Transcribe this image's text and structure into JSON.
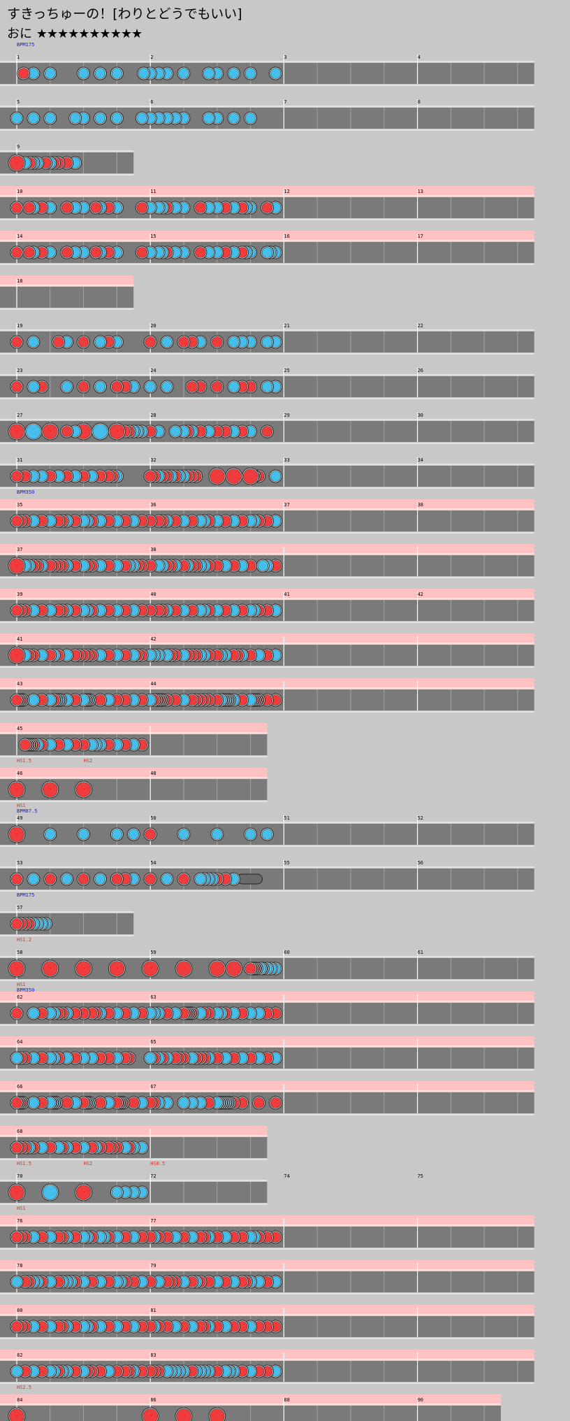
{
  "header": {
    "title": "すきっちゅーの！[わりとどうでもいい]",
    "course": "おに",
    "stars": "★★★★★★★★★★"
  },
  "colors": {
    "don": "#f03c3c",
    "ka": "#46beec",
    "lane": "#7a7a7a",
    "pink": "#ffc2c2",
    "background": "#c8c8c8"
  },
  "rows": [
    {
      "measures": [
        "1",
        "2",
        "3",
        "4"
      ],
      "events": [
        "BPM175"
      ],
      "len": 4,
      "p": 0,
      "notes": "d,0.2/k,0.5/k,1/k,2/k,2.5/k,3/k,3.8/k,4/k,4.25/k,4.5/k,5/k,5.75/k,6/k,6.5/k,7/k,7.75"
    },
    {
      "measures": [
        "5",
        "6",
        "7",
        "8"
      ],
      "events": [],
      "len": 4,
      "p": 0,
      "notes": "k,0/k,0.5/k,1/k,1.75/k,2/k,2.5/k,3/k,3.75/k,4/k,4.25/k,4.5/k,4.75/k,5/k,5.75/k,6/k,6.5/k,7"
    },
    {
      "measures": [
        "9"
      ],
      "events": [],
      "len": 1,
      "p": 0,
      "notes": "D,0/k,0.25/d,0.4/k,0.5/k,0.62/d,0.87/k,1/d,1.12/d,1.25/d,1.5/k,1.75"
    },
    {
      "measures": [
        "10",
        "11",
        "12",
        "13"
      ],
      "events": [],
      "len": 4,
      "p": 1,
      "notes": "d,0/d,0.37/k,0.5/d,0.75/k,1/d,1.5/k,1.75/k,2/d,2.37/k,2.5/d,2.75/k,3/d,3.75/k,4/k,4.25/k,4.37/d,4.5/k,4.75/k,5/d,5.5/k,5.75/k,6/d,6.25/k,6.5/d,6.75/k,6.87/k,7/d,7.5/k,7.75"
    },
    {
      "measures": [
        "14",
        "15",
        "16",
        "17"
      ],
      "events": [],
      "len": 4,
      "p": 1,
      "notes": "d,0/d,0.37/k,0.5/d,0.75/k,1/d,1.5/k,1.75/k,2/d,2.37/k,2.5/d,2.75/k,3/d,3.75/k,4/k,4.25/k,4.37/d,4.5/k,4.75/k,5/d,5.5/k,5.75/k,6/d,6.25/k,6.5/d,6.75/k,6.87/k,7/k,7.5/k,7.6/k,7.75"
    },
    {
      "measures": [
        "18"
      ],
      "events": [],
      "len": 1,
      "p": 1,
      "notes": ""
    },
    {
      "measures": [
        "19",
        "20",
        "21",
        "22"
      ],
      "events": [],
      "len": 4,
      "p": 0,
      "notes": "d,0/k,0.5/d,1.25/k,1.5/d,2/k,2.5/d,2.75/k,3/d,4/k,4.5/d,5/d,5.25/k,5.5/d,6/k,6.5/k,6.75/k,7/k,7.5/k,7.75"
    },
    {
      "measures": [
        "23",
        "24",
        "25",
        "26"
      ],
      "events": [],
      "len": 4,
      "p": 0,
      "notes": "d,0/k,0.5/d,0.75/k,1.5/d,2/k,2.5/d,3/d,3.25/k,3.5/k,4/k,4.5/d,5.25/d,5.5/d,6/k,6.5/d,6.75/d,7/k,7.5/k,7.75"
    },
    {
      "measures": [
        "27",
        "28",
        "29",
        "30"
      ],
      "events": [],
      "len": 4,
      "p": 0,
      "notes": "D,0/K,0.5/D,1/d,1.5/k,1.75/D,2/K,2.5/D,3/d,3.25/d,3.37/k,3.5/k,3.62/k,3.75/d,4/k,4.25/k,4.75/k,5/d,5.12/k,5.25/d,5.5/k,5.75/d,6/d,6.25/k,6.5/d,6.75/k,7/d,7.5"
    },
    {
      "measures": [
        "31",
        "32",
        "33",
        "34"
      ],
      "events": [],
      "len": 4,
      "p": 0,
      "notes": "d,0/d,0.25/k,0.5/k,0.75/d,1/k,1.25/d,1.5/k,1.75/d,2/k,2.25/d,2.5/d,2.75/d,2.87/k,3/d,4/d,4.12/k,4.25/d,4.37/d,4.5/k,4.62/d,4.75/k,4.87/k,5/d,5.12/d,5.25/d,5.37/D,6/D,6.5/D,7/d,7.12/d,7.25/k,7.75"
    },
    {
      "measures": [
        "35",
        "36",
        "37",
        "38"
      ],
      "events": [
        "BPM350"
      ],
      "len": 4,
      "p": 1,
      "notes": "d,0/d,0.12/d,0.25/k,0.5/d,0.75/k,1/d,1.25/d,1.37/k,1.5/d,1.75/k,2/k,2.12/d,2.25/k,2.5/d,2.75/k,3/d,3.25/k,3.5/d,3.75/d,4/d,4.25/d,4.37/k,4.5/d,4.75/k,5/d,5.25/k,5.5/k,5.62/d,5.75/k,6/d,6.25/k,6.5/d,6.75/k,7/k,7.12/d,7.25/d,7.5/k,7.75"
    },
    {
      "measures": [
        "37",
        "38"
      ],
      "events": [],
      "len": 4,
      "p": 1,
      "notes": "D,0/k,0.25/k,0.37/d,0.5/d,0.62/k,0.75/d,1/d,1.12/d,1.25/d,1.37/k,1.5/d,1.75/k,2/d,2.12/d,2.25/k,2.5/d,2.75/k,3/d,3.25/k,3.37/k,3.5/d,3.62/d,3.75/d,4/k,4.25/k,4.37/d,4.5/d,4.62/k,4.75/d,5/k,5.12/d,5.25/d,5.37/k,5.5/k,5.62/d,5.75/d,6/k,6.25/d,6.5/k,6.75/d,7/k,7.37/k,7.5/d,7.75"
    },
    {
      "measures": [
        "39",
        "40",
        "41",
        "42"
      ],
      "events": [],
      "len": 4,
      "p": 1,
      "notes": "d,0/d,0.12/d,0.25/k,0.5/d,0.75/k,1/d,1.25/d,1.37/k,1.5/d,1.75/k,2/k,2.12/d,2.25/k,2.5/d,2.75/k,3/d,3.25/k,3.5/d,3.75/d,4/d,4.25/d,4.37/k,4.5/d,4.75/k,5/d,5.25/k,5.5/k,5.62/d,5.75/k,6/d,6.25/k,6.5/d,6.75/k,7/k,7.12/d,7.25/d,7.5/k,7.75"
    },
    {
      "measures": [
        "41",
        "42"
      ],
      "events": [],
      "len": 4,
      "p": 1,
      "notes": "D,0/k,0.25/d,0.37/d,0.5/k,0.75/d,1/k,1.12/d,1.25/k,1.5/d,1.75/d,1.87/d,2/d,2.12/d,2.25/k,2.5/d,2.75/k,3/d,3.25/k,3.5/d,3.62/d,3.75/k,4/k,4.12/k,4.25/k,4.5/d,4.62/d,4.75/k,5/d,5.12/d,5.25/d,5.37/k,5.5/k,5.62/d,5.75/d,6/k,6.12/k,6.25/d,6.5/d,6.62/k,6.75/d,7/k,7.25/d,7.5/k,7.75"
    },
    {
      "measures": [
        "43",
        "44"
      ],
      "events": [],
      "len": 4,
      "p": 1,
      "notes": "d,0/d,0.06/d,0.12/d,0.18/k,0.5/d,0.75/k,1/d,1.12/k,1.18/k,1.25/k,1.31/k,1.5/d,1.75/k,2/k,2.06/k,2.12/k,2.18/d,2.5/k,2.75/d,3/d,3.25/k,3.5/d,3.75/k,4/d,4.12/d,4.18/d,4.25/d,4.31/d,4.37/d,4.5/d,4.75/k,5/d,5.25/d,5.37/d,5.5/d,5.62/d,5.75/d,6/k,6.12/k,6.18/k,6.25/k,6.31/k,6.37/k,6.5/d,6.75/k,7/d,7.06/d,7.12/d,7.18/d,7.25/d,7.5/d,7.75"
    },
    {
      "measures": [
        "45"
      ],
      "events": [],
      "len": 2,
      "p": 1,
      "notes": "d,0.25/d,0.31/d,0.37/d,0.43/d,0.5/k,0.62/d,0.75/k,1/d,1.25/k,1.5/d,1.75/d,2/k,2.25/k,2.37/k,2.5/d,2.75/k,3/d,3.25/k,3.5/d,3.75"
    },
    {
      "measures": [
        "46",
        "48"
      ],
      "events": [
        "HS1.5",
        "HS2"
      ],
      "len": 2,
      "p": 1,
      "notes": "D,0/D,1/D,2"
    },
    {
      "measures": [
        "49",
        "50",
        "51",
        "52"
      ],
      "events": [
        "HS1",
        "BPM87.5"
      ],
      "len": 4,
      "p": 0,
      "notes": "D,0/k,1/k,2/k,3/k,3.5/d,4/k,5/k,6/k,7/k,7.5"
    },
    {
      "measures": [
        "53",
        "54",
        "55",
        "56"
      ],
      "events": [],
      "len": 4,
      "p": 0,
      "notes": "d,0/k,0.5/d,1/k,1.5/d,2/k,2.5/d,3/d,3.25/k,3.5/d,4/k,4.5/d,5/k,5.5/k,5.62/k,5.75/k,5.87/d,6/d,6.25/k,6.5/y,6.6"
    },
    {
      "measures": [
        "57"
      ],
      "events": [
        "BPM175"
      ],
      "len": 1,
      "p": 0,
      "notes": "d,0/d,0.12/d,0.25/d,0.37/k,0.5/k,0.62/k,0.75/k,0.87"
    },
    {
      "measures": [
        "58",
        "59",
        "60",
        "61"
      ],
      "events": [
        "HS1.2"
      ],
      "len": 4,
      "p": 0,
      "notes": "D,0/D,1/D,2/D,3/D,4/D,5/D,6/D,6.5/d,7/d,7.06/d,7.12/d,7.18/k,7.31/k,7.37/k,7.5/k,7.62/k,7.75"
    },
    {
      "measures": [
        "62",
        "63"
      ],
      "events": [
        "HS1",
        "BPM350"
      ],
      "len": 4,
      "p": 1,
      "notes": "d,0/k,0.5/d,0.75/k,1/k,1.12/d,1.25/d,1.37/k,1.5/d,1.75/d,2/d,2.25/d,2.37/k,2.5/d,2.75/k,3/d,3.25/k,3.5/d,3.75/k,4/k,4.12/k,4.25/d,4.5/k,4.75/d,5/d,5.06/d,5.12/d,5.18/d,5.25/k,5.5/d,5.62/d,5.75/k,6/k,6.12/d,6.25/k,6.5/d,6.75/k,7/k,7.25/d,7.5/d,7.75"
    },
    {
      "measures": [
        "64",
        "65"
      ],
      "events": [],
      "len": 4,
      "p": 1,
      "notes": "k,0/d,0.12/d,0.25/k,0.5/d,0.75/k,1/k,1.12/d,1.25/k,1.5/d,1.75/k,2/k,2.25/d,2.5/d,2.75/k,3/d,3.25/d,3.37/k,4/d,4.12/k,4.25/d,4.37/k,4.5/d,4.75/d,4.87/d,5/k,5.25/d,5.37/d,5.5/d,5.62/k,5.75/d,6/k,6.25/d,6.5/k,6.75/d,7/k,7.25/d,7.5/k,7.75"
    },
    {
      "measures": [
        "66",
        "67"
      ],
      "events": [],
      "len": 4,
      "p": 1,
      "notes": "d,0/d,0.06/d,0.12/d,0.18/k,0.5/d,0.75/k,1/k,1.06/k,1.12/k,1.18/d,1.5/k,1.75/d,2/k,2.06/k,2.12/k,2.18/d,2.5/k,2.75/d,3/d,3.06/d,3.12/d,3.18/d,3.5/k,3.75/d,4/d,4.12/k,4.25/k,4.5/k,5/k,5.25/k,5.5/d,5.75/k,6/k,6.06/k,6.12/k,6.18/k,6.25/k,6.31/k,6.37/d,6.5/d,6.75/d,7.25/d,7.75"
    },
    {
      "measures": [
        "68"
      ],
      "events": [],
      "len": 2,
      "p": 1,
      "notes": "d,0/d,0.12/d,0.25/k,0.37/d,0.5/k,0.75/d,1/k,1.25/d,1.37/k,1.5/d,1.75/k,2/d,2.25/k,2.37/d,2.5/d,2.75/d,2.87/d,3/k,3.25/d,3.37/k,3.5/k,3.75"
    },
    {
      "measures": [
        "70",
        "72",
        "74",
        "75"
      ],
      "events": [
        "HS1.5",
        "HS2",
        "HS0.5"
      ],
      "len": 2,
      "p": 0,
      "notes": "D,0/K,1/D,2/k,3/k,3.25/k,3.5/k,3.75"
    },
    {
      "measures": [
        "76",
        "77"
      ],
      "events": [
        "HS1"
      ],
      "len": 4,
      "p": 1,
      "notes": "d,0/d,0.12/d,0.25/k,0.5/d,0.75/k,1/d,1.25/d,1.37/k,1.5/d,1.75/k,2/k,2.12/d,2.25/k,2.5/k,2.62/d,2.75/k,3/d,3.25/k,3.5/d,3.75/d,4/k,4.12/d,4.25/d,4.5/k,4.75/d,5/k,5.25/d,5.5/d,5.62/k,5.75/d,6/k,6.25/d,6.5/d,6.75/k,7/k,7.12/d,7.25/d,7.5/d,7.75"
    },
    {
      "measures": [
        "78",
        "79"
      ],
      "events": [],
      "len": 4,
      "p": 1,
      "notes": "k,0/d,0.25/d,0.37/k,0.5/k,0.62/d,0.75/k,1/d,1.25/k,1.37/k,1.5/k,1.62/d,1.75/k,2/d,2.25/k,2.5/d,2.75/k,3/k,3.12/d,3.25/d,3.5/k,3.75/d,4/k,4.25/d,4.5/d,4.62/d,4.75/k,5/d,5.25/k,5.37/d,5.5/d,5.75/k,6/d,6.25/k,6.5/d,6.75/d,6.87/k,7/k,7.25/d,7.5/k,7.75"
    },
    {
      "measures": [
        "80",
        "81"
      ],
      "events": [],
      "len": 4,
      "p": 1,
      "notes": "d,0/d,0.12/d,0.25/k,0.5/d,0.75/k,1/d,1.25/d,1.37/k,1.5/d,1.75/k,2/k,2.12/d,2.25/k,2.5/d,2.75/k,3/d,3.25/k,3.5/d,3.75/d,4/k,4.12/d,4.25/d,4.5/k,4.75/d,5/k,5.25/d,5.5/d,5.62/k,5.75/d,6/k,6.25/d,6.5/d,6.75/k,7/d,7.25/d,7.5/d,7.75"
    },
    {
      "measures": [
        "82",
        "83"
      ],
      "events": [],
      "len": 4,
      "p": 1,
      "notes": "k,0/d,0.25/k,0.5/d,0.75/k,1/k,1.12/d,1.25/k,1.37/k,1.5/d,1.75/k,2/d,2.12/d,2.25/d,2.5/k,2.75/d,3/d,3.25/d,3.37/k,3.5/d,3.75/d,4/d,4.12/d,4.25/k,4.5/k,4.62/k,4.75/k,4.87/k,5/d,5.25/k,5.37/k,5.5/k,5.62/k,5.75/d,6/k,6.25/k,6.37/k,6.5/d,6.75/k,7/d,7.25/d,7.5/k,7.75"
    },
    {
      "measures": [
        "84",
        "86",
        "88",
        "90"
      ],
      "events": [
        "HS2.5"
      ],
      "len": 3.75,
      "p": 1,
      "notes": "D,0/D,4/D,5/D,6"
    }
  ]
}
